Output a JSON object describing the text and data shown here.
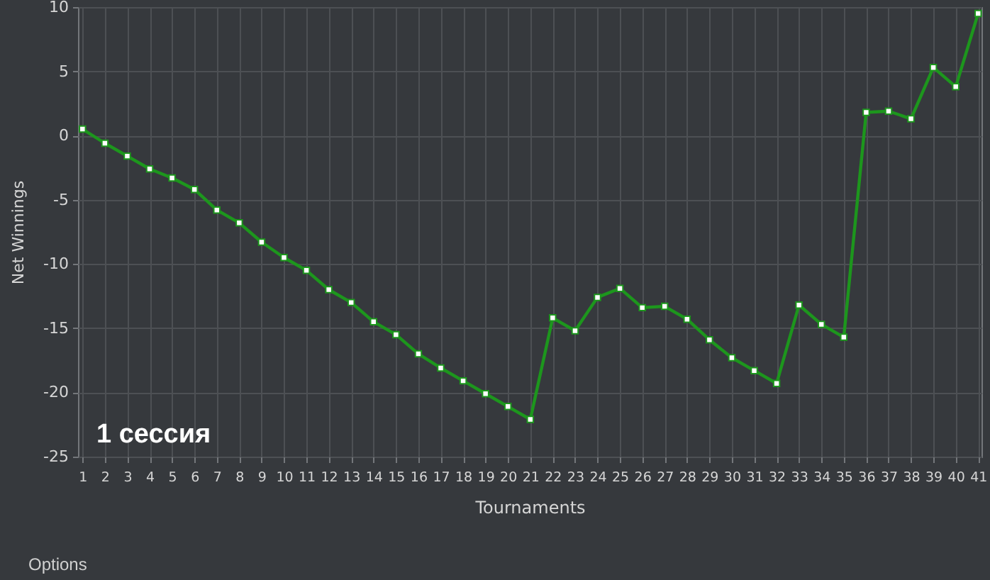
{
  "chart_data": {
    "type": "line",
    "xlabel": "Tournaments",
    "ylabel": "Net Winnings",
    "x": [
      1,
      2,
      3,
      4,
      5,
      6,
      7,
      8,
      9,
      10,
      11,
      12,
      13,
      14,
      15,
      16,
      17,
      18,
      19,
      20,
      21,
      22,
      23,
      24,
      25,
      26,
      27,
      28,
      29,
      30,
      31,
      32,
      33,
      34,
      35,
      36,
      37,
      38,
      39,
      40,
      41
    ],
    "series": [
      {
        "color": "#1d961d",
        "values": [
          0.5,
          -0.6,
          -1.6,
          -2.6,
          -3.3,
          -4.2,
          -5.8,
          -6.8,
          -8.3,
          -9.5,
          -10.5,
          -12.0,
          -13.0,
          -14.5,
          -15.5,
          -17.0,
          -18.1,
          -19.1,
          -20.1,
          -21.1,
          -22.1,
          -14.2,
          -15.2,
          -12.6,
          -11.9,
          -13.4,
          -13.3,
          -14.3,
          -15.9,
          -17.3,
          -18.3,
          -19.3,
          -13.2,
          -14.7,
          -15.7,
          1.8,
          1.9,
          1.3,
          5.3,
          3.8,
          9.5
        ]
      }
    ],
    "xlim": [
      0.8,
      41.15
    ],
    "ylim": [
      -25,
      10
    ],
    "xticks": [
      1,
      2,
      3,
      4,
      5,
      6,
      7,
      8,
      9,
      10,
      11,
      12,
      13,
      14,
      15,
      16,
      17,
      18,
      19,
      20,
      21,
      22,
      23,
      24,
      25,
      26,
      27,
      28,
      29,
      30,
      31,
      32,
      33,
      34,
      35,
      36,
      37,
      38,
      39,
      40,
      41
    ],
    "yticks": [
      -25,
      -20,
      -15,
      -10,
      -5,
      0,
      5,
      10
    ],
    "grid": true,
    "marker": "square",
    "line_style": "solid",
    "annotations": [
      "1 сессия",
      "Options"
    ]
  }
}
